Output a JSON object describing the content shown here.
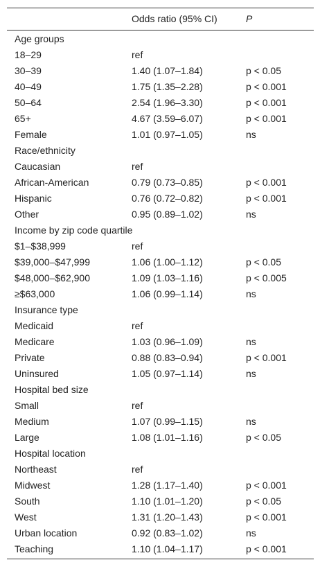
{
  "table": {
    "header": [
      "Odds ratio (95% CI)",
      "P"
    ],
    "rows": [
      [
        "Age groups"
      ],
      [
        "18–29",
        "ref"
      ],
      [
        "30–39",
        "1.40 (1.07–1.84)",
        "p < 0.05"
      ],
      [
        "40–49",
        "1.75 (1.35–2.28)",
        "p < 0.001"
      ],
      [
        "50–64",
        "2.54 (1.96–3.30)",
        "p < 0.001"
      ],
      [
        "65+",
        "4.67 (3.59–6.07)",
        "p < 0.001"
      ],
      [
        "Female",
        "1.01 (0.97–1.05)",
        "ns"
      ],
      [
        "Race/ethnicity"
      ],
      [
        "Caucasian",
        "ref"
      ],
      [
        "African-American",
        "0.79 (0.73–0.85)",
        "p < 0.001"
      ],
      [
        "Hispanic",
        "0.76 (0.72–0.82)",
        "p < 0.001"
      ],
      [
        "Other",
        "0.95 (0.89–1.02)",
        "ns"
      ],
      [
        "Income by zip code quartile"
      ],
      [
        "$1–$38,999",
        "ref"
      ],
      [
        "$39,000–$47,999",
        "1.06 (1.00–1.12)",
        "p < 0.05"
      ],
      [
        "$48,000–$62,900",
        "1.09 (1.03–1.16)",
        "p < 0.005"
      ],
      [
        "≥$63,000",
        "1.06 (0.99–1.14)",
        "ns"
      ],
      [
        "Insurance type"
      ],
      [
        "Medicaid",
        "ref"
      ],
      [
        "Medicare",
        "1.03 (0.96–1.09)",
        "ns"
      ],
      [
        "Private",
        "0.88 (0.83–0.94)",
        "p < 0.001"
      ],
      [
        "Uninsured",
        "1.05 (0.97–1.14)",
        "ns"
      ],
      [
        "Hospital bed size"
      ],
      [
        "Small",
        "ref"
      ],
      [
        "Medium",
        "1.07 (0.99–1.15)",
        "ns"
      ],
      [
        "Large",
        "1.08 (1.01–1.16)",
        "p < 0.05"
      ],
      [
        "Hospital location"
      ],
      [
        "Northeast",
        "ref"
      ],
      [
        "Midwest",
        "1.28 (1.17–1.40)",
        "p < 0.001"
      ],
      [
        "South",
        "1.10 (1.01–1.20)",
        "p < 0.05"
      ],
      [
        "West",
        "1.31 (1.20–1.43)",
        "p < 0.001"
      ],
      [
        "Urban location",
        "0.92 (0.83–1.02)",
        "ns"
      ],
      [
        "Teaching",
        "1.10 (1.04–1.17)",
        "p < 0.001"
      ]
    ]
  }
}
